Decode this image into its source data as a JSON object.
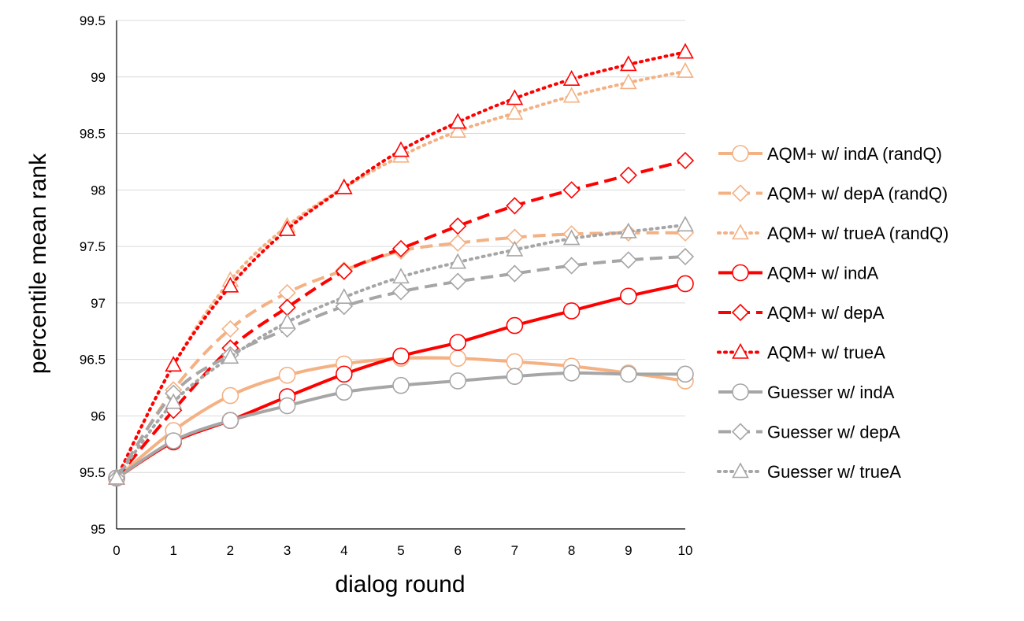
{
  "chart_data": {
    "type": "line",
    "title": "",
    "xlabel": "dialog round",
    "ylabel": "percentile mean rank",
    "x": [
      0,
      1,
      2,
      3,
      4,
      5,
      6,
      7,
      8,
      9,
      10
    ],
    "xlim": [
      0,
      10
    ],
    "ylim": [
      95,
      99.5
    ],
    "yticks": [
      "95",
      "95.5",
      "96",
      "96.5",
      "97",
      "97.5",
      "98",
      "98.5",
      "99",
      "99.5"
    ],
    "xticks": [
      "0",
      "1",
      "2",
      "3",
      "4",
      "5",
      "6",
      "7",
      "8",
      "9",
      "10"
    ],
    "grid": "horizontal",
    "legend_position": "right",
    "series": [
      {
        "name": "AQM+ w/ indA (randQ)",
        "color": "#f4b183",
        "dash": "solid",
        "marker": "circle",
        "values": [
          95.45,
          95.87,
          96.18,
          96.36,
          96.46,
          96.51,
          96.51,
          96.48,
          96.44,
          96.38,
          96.31
        ]
      },
      {
        "name": "AQM+ w/ depA (randQ)",
        "color": "#f4b183",
        "dash": "dashed",
        "marker": "diamond",
        "values": [
          95.45,
          96.23,
          96.77,
          97.09,
          97.29,
          97.46,
          97.53,
          97.58,
          97.61,
          97.62,
          97.62
        ]
      },
      {
        "name": "AQM+ w/ trueA (randQ)",
        "color": "#f4b183",
        "dash": "dotted",
        "marker": "triangle",
        "values": [
          95.45,
          96.45,
          97.2,
          97.68,
          98.02,
          98.3,
          98.52,
          98.68,
          98.83,
          98.95,
          99.05
        ]
      },
      {
        "name": "AQM+ w/ indA",
        "color": "#ff0000",
        "dash": "solid",
        "marker": "circle",
        "values": [
          95.45,
          95.77,
          95.96,
          96.17,
          96.37,
          96.53,
          96.65,
          96.8,
          96.93,
          97.06,
          97.17
        ]
      },
      {
        "name": "AQM+ w/ depA",
        "color": "#ff0000",
        "dash": "dashed",
        "marker": "diamond",
        "values": [
          95.45,
          96.05,
          96.6,
          96.96,
          97.28,
          97.48,
          97.68,
          97.86,
          98.0,
          98.13,
          98.26
        ]
      },
      {
        "name": "AQM+ w/ trueA",
        "color": "#ff0000",
        "dash": "dotted",
        "marker": "triangle",
        "values": [
          95.45,
          96.45,
          97.15,
          97.65,
          98.02,
          98.35,
          98.6,
          98.81,
          98.98,
          99.11,
          99.22
        ]
      },
      {
        "name": "Guesser w/ indA",
        "color": "#a6a6a6",
        "dash": "solid",
        "marker": "circle",
        "values": [
          95.45,
          95.78,
          95.96,
          96.09,
          96.21,
          96.27,
          96.31,
          96.35,
          96.38,
          96.37,
          96.37
        ]
      },
      {
        "name": "Guesser w/ depA",
        "color": "#a6a6a6",
        "dash": "dashed",
        "marker": "diamond",
        "values": [
          95.45,
          96.2,
          96.54,
          96.77,
          96.97,
          97.1,
          97.19,
          97.26,
          97.33,
          97.38,
          97.41
        ]
      },
      {
        "name": "Guesser w/ trueA",
        "color": "#a6a6a6",
        "dash": "dotted",
        "marker": "triangle",
        "values": [
          95.45,
          96.12,
          96.52,
          96.83,
          97.05,
          97.23,
          97.36,
          97.47,
          97.57,
          97.63,
          97.69
        ]
      }
    ]
  }
}
